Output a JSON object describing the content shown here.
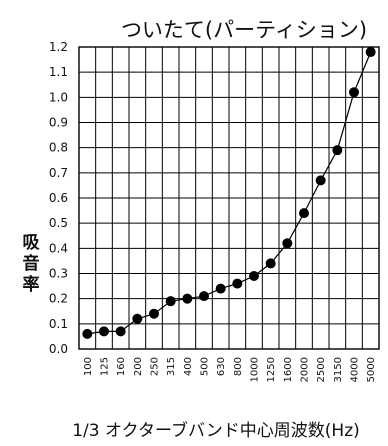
{
  "chart_data": {
    "type": "line",
    "title": "ついたて(パーティション)",
    "xlabel": "1/3 オクターブバンド中心周波数(Hz)",
    "ylabel": "吸音率",
    "categories": [
      "100",
      "125",
      "160",
      "200",
      "250",
      "315",
      "400",
      "500",
      "630",
      "800",
      "1000",
      "1250",
      "1600",
      "2000",
      "2500",
      "3150",
      "4000",
      "5000"
    ],
    "series": [
      {
        "values": [
          0.06,
          0.07,
          0.07,
          0.12,
          0.14,
          0.19,
          0.2,
          0.21,
          0.24,
          0.26,
          0.29,
          0.34,
          0.42,
          0.54,
          0.67,
          0.79,
          1.02,
          1.18
        ]
      }
    ],
    "ylim": [
      0,
      1.2
    ],
    "yticks": [
      "0.0",
      "0.1",
      "0.2",
      "0.3",
      "0.4",
      "0.5",
      "0.6",
      "0.7",
      "0.8",
      "0.9",
      "1.0",
      "1.1",
      "1.2"
    ],
    "grid": true,
    "marker": "filled-circle",
    "line_color": "#000000"
  }
}
